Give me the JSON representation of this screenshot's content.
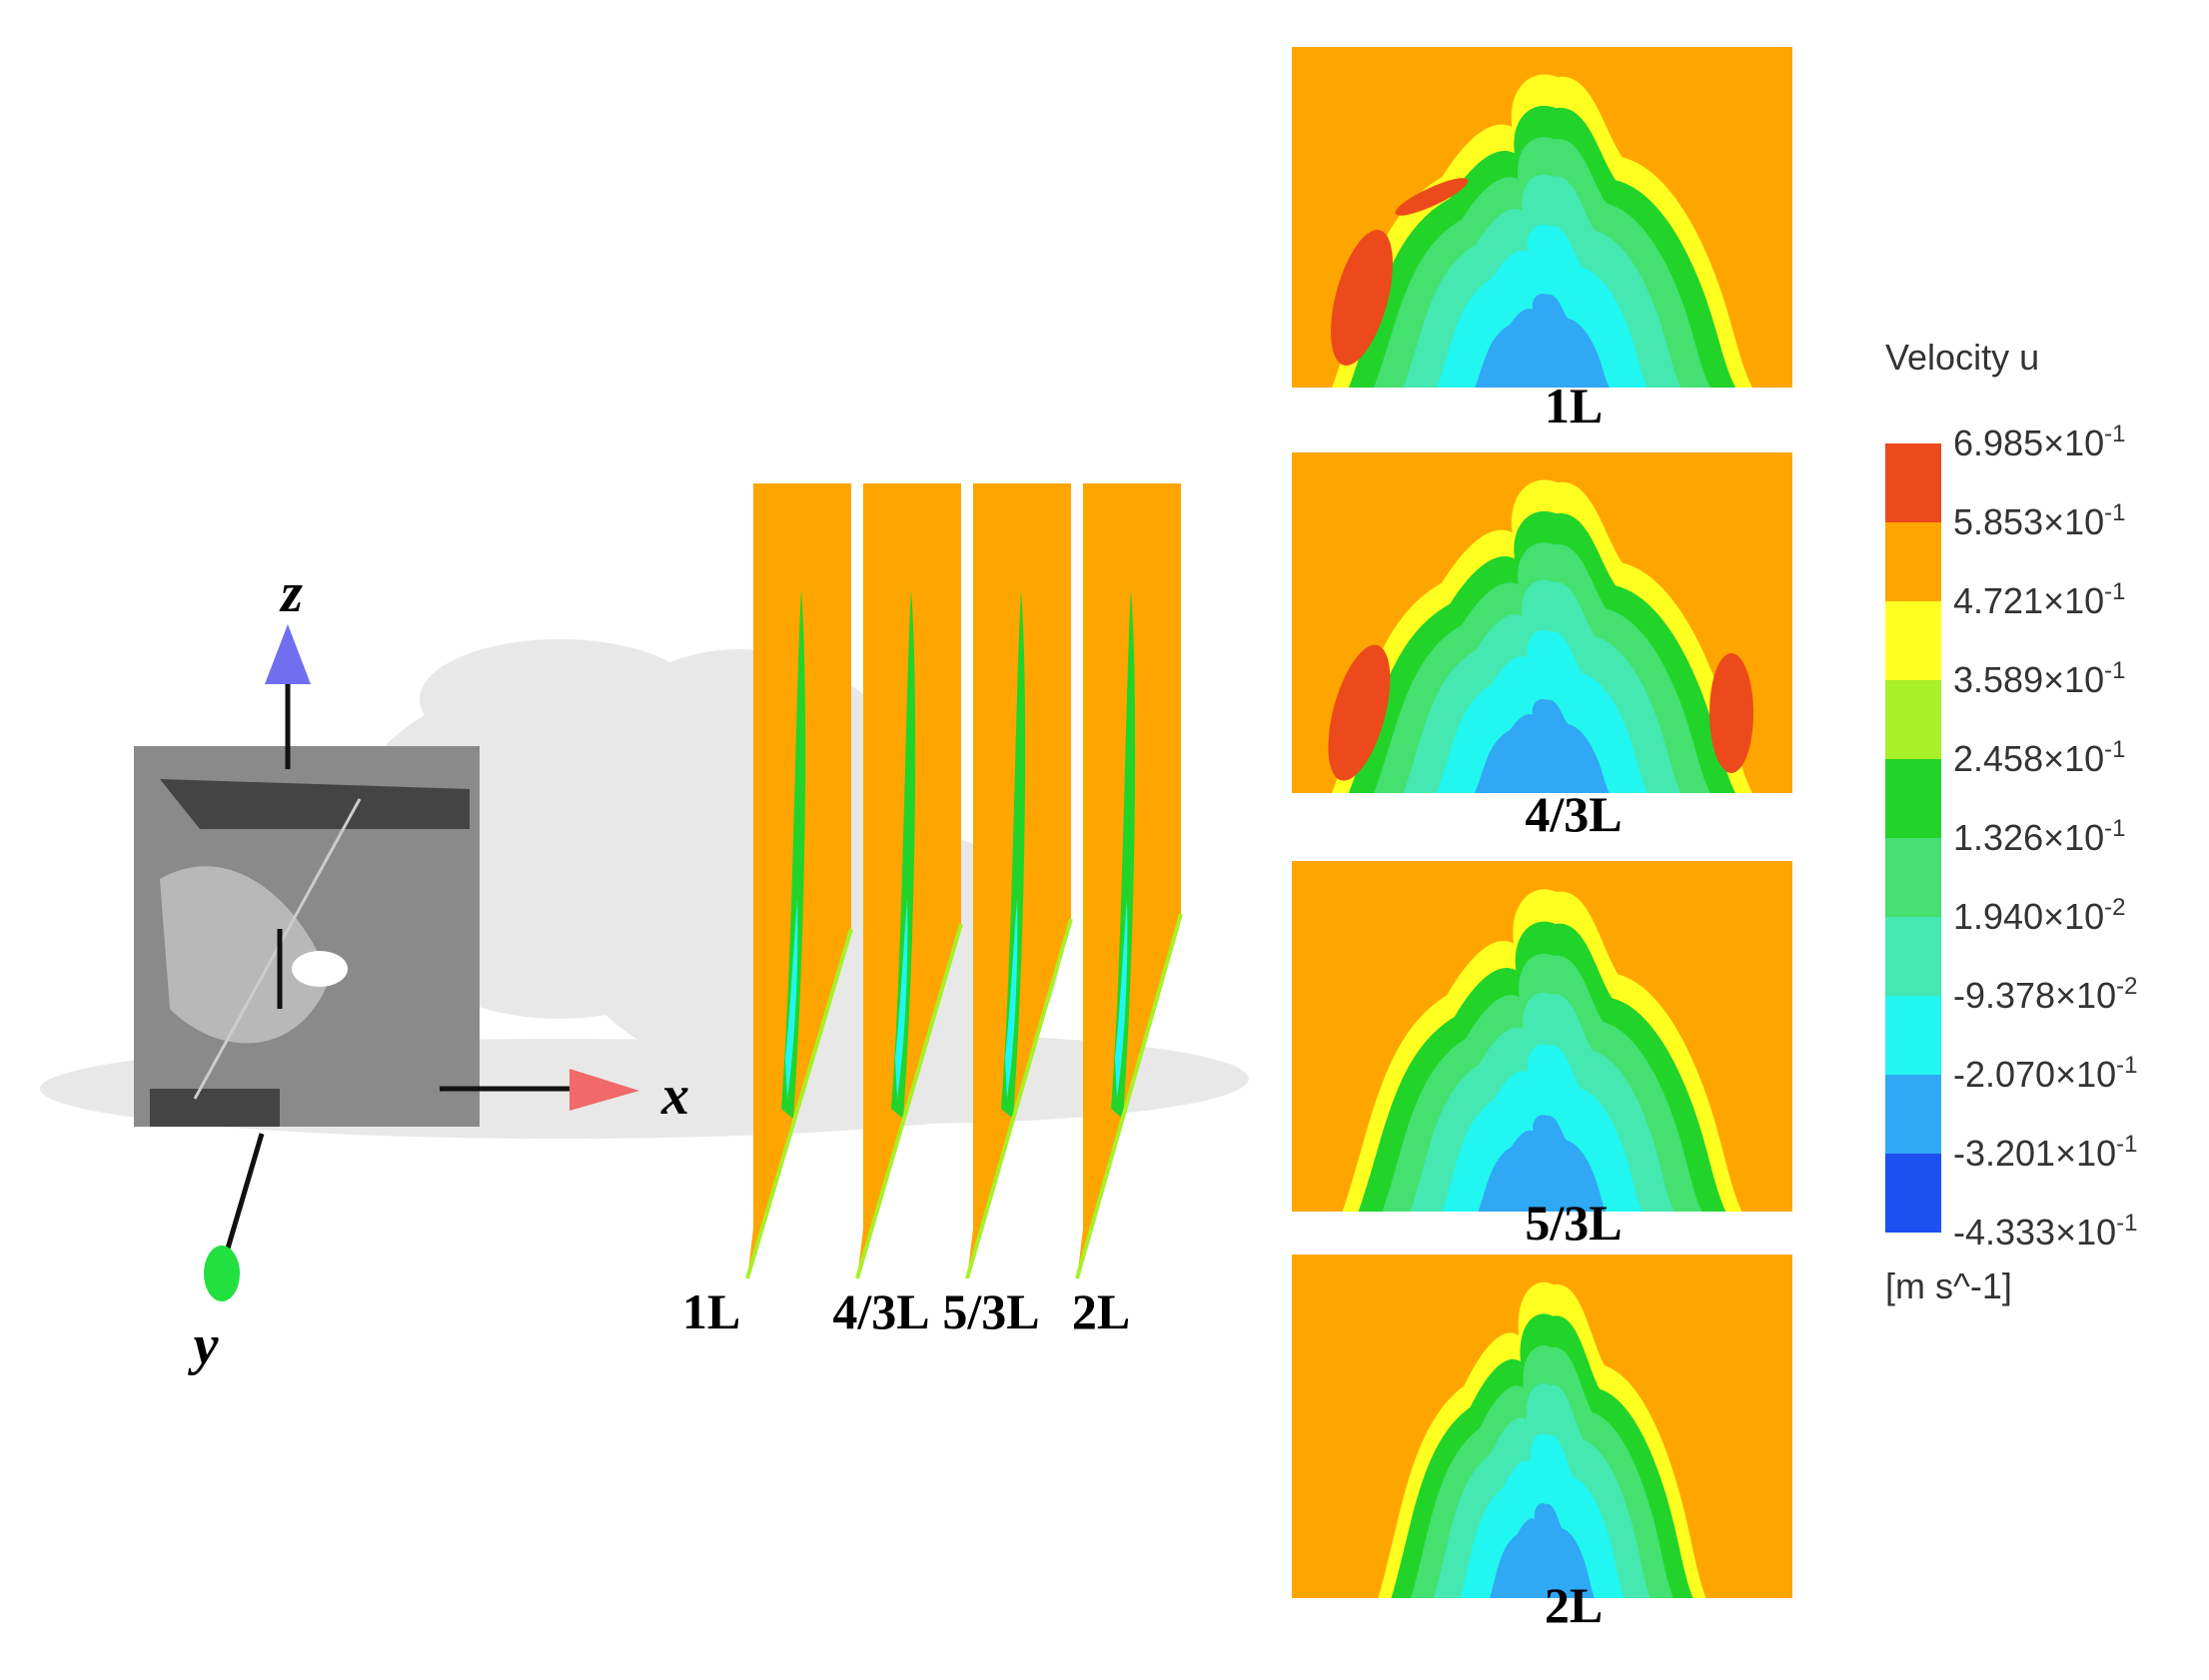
{
  "scene": {
    "axes": {
      "z": "z",
      "x": "x",
      "y": "y"
    }
  },
  "planes": {
    "labels": [
      "1L",
      "4/3L",
      "5/3L",
      "2L"
    ]
  },
  "panels": [
    {
      "label": "1L"
    },
    {
      "label": "4/3L"
    },
    {
      "label": "5/3L"
    },
    {
      "label": "2L"
    }
  ],
  "legend": {
    "title": "Velocity u",
    "levels": [
      {
        "mantissa": "6.985×10",
        "exponent": "-1"
      },
      {
        "mantissa": "5.853×10",
        "exponent": "-1"
      },
      {
        "mantissa": "4.721×10",
        "exponent": "-1"
      },
      {
        "mantissa": "3.589×10",
        "exponent": "-1"
      },
      {
        "mantissa": "2.458×10",
        "exponent": "-1"
      },
      {
        "mantissa": "1.326×10",
        "exponent": "-1"
      },
      {
        "mantissa": "1.940×10",
        "exponent": "-2"
      },
      {
        "mantissa": "-9.378×10",
        "exponent": "-2"
      },
      {
        "mantissa": "-2.070×10",
        "exponent": "-1"
      },
      {
        "mantissa": "-3.201×10",
        "exponent": "-1"
      },
      {
        "mantissa": "-4.333×10",
        "exponent": "-1"
      }
    ],
    "colors": [
      "#ec4a1c",
      "#ffa500",
      "#ffff20",
      "#a8f028",
      "#22d42a",
      "#44e070",
      "#44e8b0",
      "#22f6f0",
      "#30a8f4",
      "#1c50f0"
    ],
    "unit": "[m s^-1]"
  }
}
